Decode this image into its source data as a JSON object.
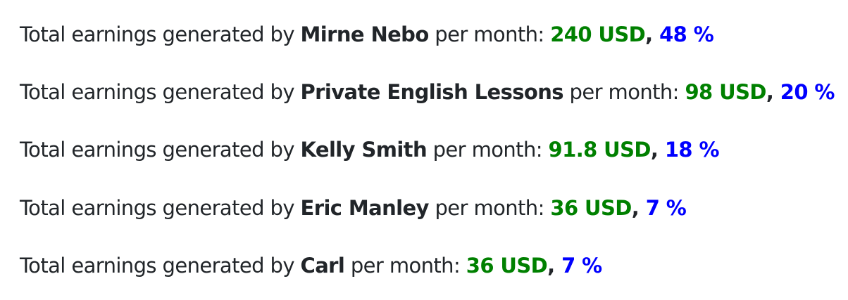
{
  "colors": {
    "text": "#212529",
    "usd": "#008000",
    "pct": "#0000ff"
  },
  "rows": [
    {
      "prefix": "Total earnings generated by ",
      "name": "Mirne Nebo",
      "mid": " per month: ",
      "usd": "240 USD",
      "sep": ", ",
      "pct": "48 %"
    },
    {
      "prefix": "Total earnings generated by ",
      "name": "Private English Lessons",
      "mid": " per month: ",
      "usd": "98 USD",
      "sep": ", ",
      "pct": "20 %"
    },
    {
      "prefix": "Total earnings generated by ",
      "name": "Kelly Smith",
      "mid": " per month: ",
      "usd": "91.8 USD",
      "sep": ", ",
      "pct": "18 %"
    },
    {
      "prefix": "Total earnings generated by ",
      "name": "Eric Manley",
      "mid": " per month: ",
      "usd": "36 USD",
      "sep": ", ",
      "pct": "7 %"
    },
    {
      "prefix": "Total earnings generated by ",
      "name": "Carl",
      "mid": " per month: ",
      "usd": "36 USD",
      "sep": ", ",
      "pct": "7 %"
    }
  ]
}
